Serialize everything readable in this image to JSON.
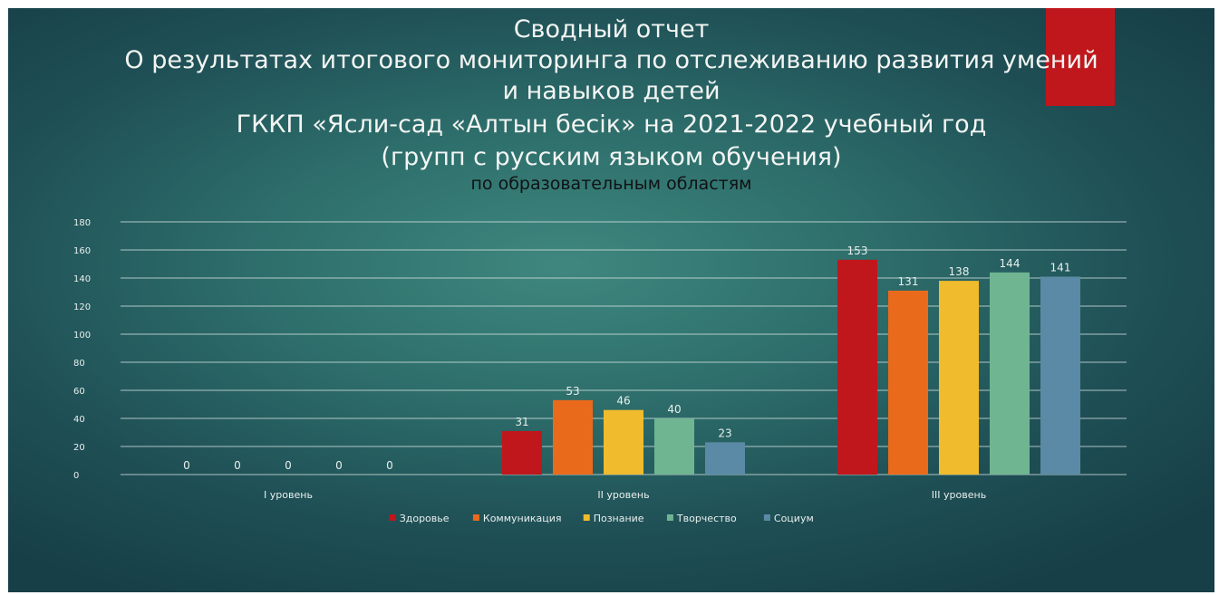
{
  "slide": {
    "title_lines": [
      "Сводный отчет",
      "О результатах  итогового мониторинга по отслеживанию развития умений",
      "и навыков детей",
      "ГККП «Ясли-сад «Алтын бесік» на 2021-2022 учебный год",
      "(групп с русским языком обучения)"
    ],
    "subtitle": "по образовательным областям",
    "accent_color": "#c0171c"
  },
  "chart_data": {
    "type": "bar",
    "categories": [
      "I уровень",
      "II уровень",
      "III уровень"
    ],
    "series": [
      {
        "name": "Здоровье",
        "color": "#c0171c",
        "values": [
          0,
          31,
          153
        ]
      },
      {
        "name": "Коммуникация",
        "color": "#ea6a1b",
        "values": [
          0,
          53,
          131
        ]
      },
      {
        "name": "Познание",
        "color": "#f0bb2c",
        "values": [
          0,
          46,
          138
        ]
      },
      {
        "name": "Творчество",
        "color": "#6fb592",
        "values": [
          0,
          40,
          144
        ]
      },
      {
        "name": "Социум",
        "color": "#5a8aa5",
        "values": [
          0,
          23,
          141
        ]
      }
    ],
    "ylim": [
      0,
      180
    ],
    "yticks": [
      0,
      20,
      40,
      60,
      80,
      100,
      120,
      140,
      160,
      180
    ],
    "grid": true,
    "legend_position": "bottom"
  }
}
